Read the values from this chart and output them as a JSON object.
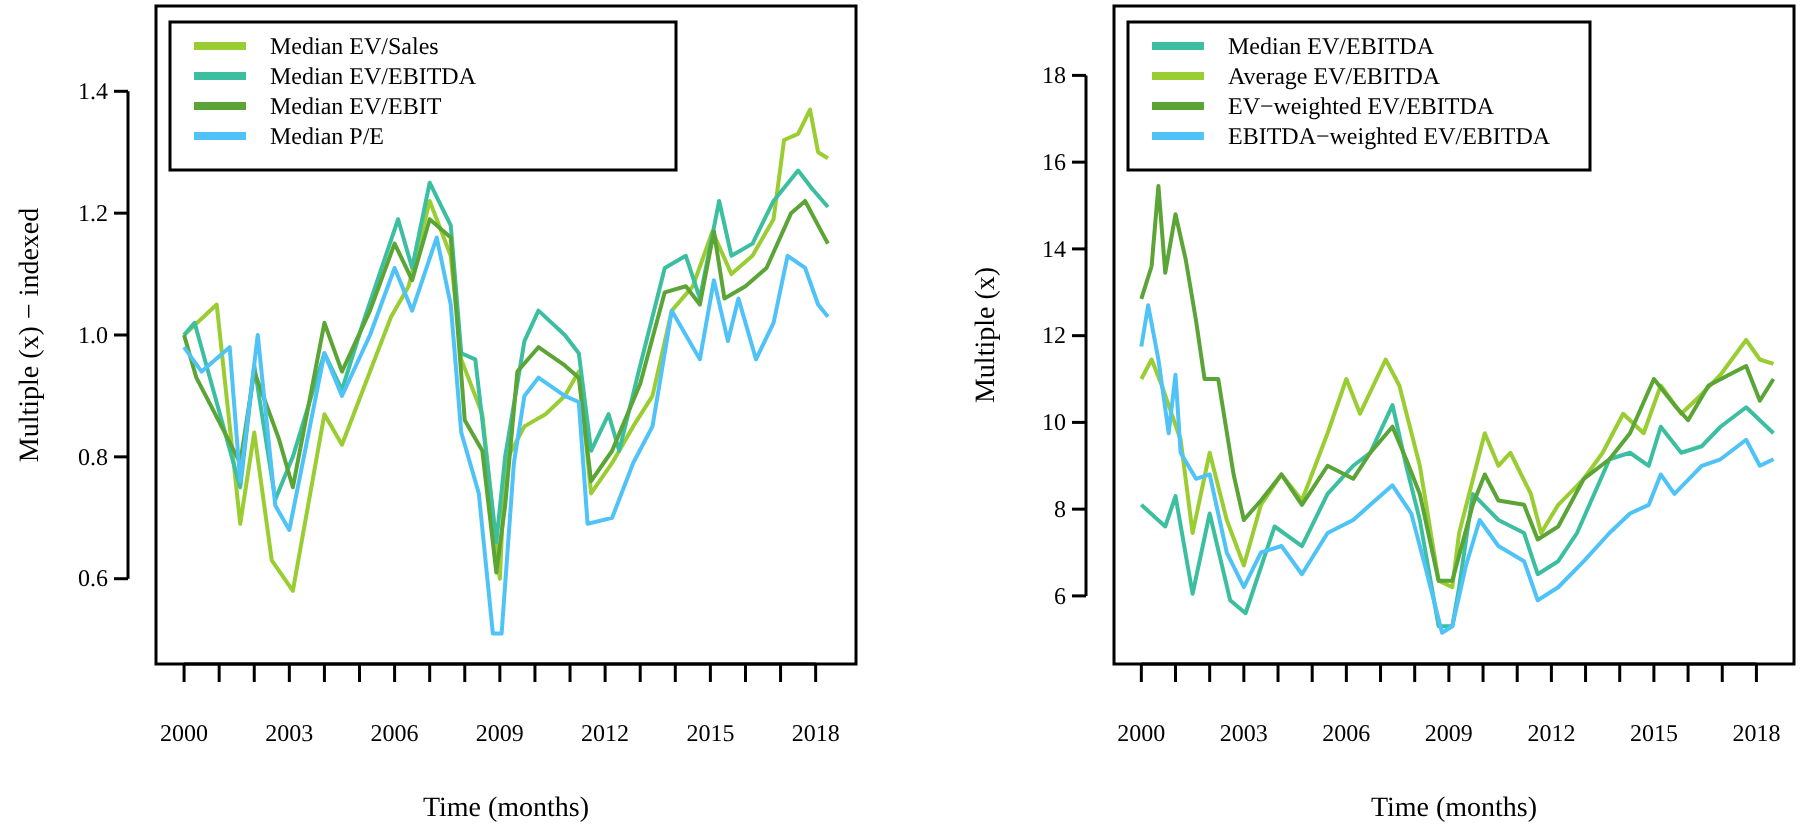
{
  "chart_data": [
    {
      "type": "line",
      "xlabel": "Time (months)",
      "ylabel": "Multiple (x) − indexed",
      "legend": "top left",
      "grid": false,
      "xlim": [
        1999.2,
        2019.15
      ],
      "ylim": [
        0.46,
        1.54
      ],
      "xticks": [
        2000,
        {
          "value": 2001,
          "label": null
        },
        {
          "value": 2002,
          "label": null
        },
        2003,
        {
          "value": 2004,
          "label": null
        },
        {
          "value": 2005,
          "label": null
        },
        2006,
        {
          "value": 2007,
          "label": null
        },
        {
          "value": 2008,
          "label": null
        },
        2009,
        {
          "value": 2010,
          "label": null
        },
        {
          "value": 2011,
          "label": null
        },
        2012,
        {
          "value": 2013,
          "label": null
        },
        {
          "value": 2014,
          "label": null
        },
        2015,
        {
          "value": 2016,
          "label": null
        },
        {
          "value": 2017,
          "label": null
        },
        2018
      ],
      "yticks": [
        0.6,
        0.8,
        {
          "value": 1,
          "label": "1.0"
        },
        1.2,
        1.4
      ],
      "series": [
        {
          "name": "Median EV/Sales",
          "color": "#9acd32",
          "x": [
            2000,
            2000.93,
            2001.6,
            2002.0,
            2002.5,
            2003.1,
            2004.0,
            2004.5,
            2005.3,
            2005.9,
            2006.4,
            2007.0,
            2007.6,
            2007.9,
            2008.5,
            2009.0,
            2009.15,
            2009.7,
            2010.3,
            2010.85,
            2011.25,
            2011.6,
            2012.2,
            2012.8,
            2013.35,
            2013.9,
            2014.5,
            2015.06,
            2015.6,
            2016.2,
            2016.8,
            2017.1,
            2017.5,
            2017.84,
            2018.07,
            2018.35
          ],
          "values": [
            1.0,
            1.05,
            0.69,
            0.84,
            0.63,
            0.58,
            0.87,
            0.82,
            0.94,
            1.03,
            1.08,
            1.22,
            1.13,
            0.96,
            0.87,
            0.6,
            0.79,
            0.85,
            0.87,
            0.9,
            0.94,
            0.74,
            0.79,
            0.85,
            0.9,
            1.04,
            1.08,
            1.17,
            1.1,
            1.13,
            1.19,
            1.32,
            1.33,
            1.37,
            1.3,
            1.29
          ]
        },
        {
          "name": "Median EV/EBITDA",
          "color": "#3cbfa0",
          "x": [
            2000,
            2000.3,
            2001.6,
            2002.0,
            2002.6,
            2003.1,
            2004.0,
            2004.5,
            2005.1,
            2006.1,
            2006.5,
            2007.0,
            2007.6,
            2007.9,
            2008.3,
            2008.9,
            2009.15,
            2009.7,
            2010.1,
            2010.85,
            2011.25,
            2011.6,
            2012.1,
            2012.4,
            2013.0,
            2013.7,
            2014.3,
            2014.7,
            2015.25,
            2015.6,
            2016.2,
            2016.8,
            2017.5,
            2017.9,
            2018.35
          ],
          "values": [
            1.0,
            1.02,
            0.75,
            0.95,
            0.73,
            0.8,
            0.97,
            0.91,
            1.02,
            1.19,
            1.11,
            1.25,
            1.18,
            0.97,
            0.96,
            0.66,
            0.8,
            0.99,
            1.04,
            1.0,
            0.97,
            0.81,
            0.87,
            0.81,
            0.95,
            1.11,
            1.13,
            1.06,
            1.22,
            1.13,
            1.15,
            1.22,
            1.27,
            1.24,
            1.21
          ]
        },
        {
          "name": "Median EV/EBIT",
          "color": "#5aa535",
          "x": [
            2000,
            2000.35,
            2000.8,
            2001.6,
            2002.0,
            2002.7,
            2003.1,
            2004.0,
            2004.5,
            2005.3,
            2006.0,
            2006.5,
            2007.0,
            2007.6,
            2008.0,
            2008.5,
            2008.9,
            2009.15,
            2009.5,
            2010.1,
            2010.85,
            2011.25,
            2011.6,
            2012.2,
            2013.0,
            2013.7,
            2014.3,
            2014.7,
            2015.1,
            2015.4,
            2016.0,
            2016.6,
            2017.3,
            2017.7,
            2018.07,
            2018.35
          ],
          "values": [
            1.0,
            0.93,
            0.88,
            0.79,
            0.94,
            0.83,
            0.75,
            1.02,
            0.94,
            1.04,
            1.15,
            1.09,
            1.19,
            1.16,
            0.86,
            0.81,
            0.61,
            0.72,
            0.94,
            0.98,
            0.95,
            0.93,
            0.76,
            0.81,
            0.92,
            1.07,
            1.08,
            1.05,
            1.17,
            1.06,
            1.08,
            1.11,
            1.2,
            1.22,
            1.18,
            1.15
          ]
        },
        {
          "name": "Median P/E",
          "color": "#4fc3f7",
          "x": [
            2000,
            2000.5,
            2001.3,
            2001.6,
            2002.1,
            2002.6,
            2003.0,
            2004.0,
            2004.5,
            2005.3,
            2006.0,
            2006.5,
            2007.2,
            2007.6,
            2007.9,
            2008.4,
            2008.8,
            2009.05,
            2009.4,
            2009.7,
            2010.1,
            2010.85,
            2011.25,
            2011.5,
            2012.2,
            2012.8,
            2013.35,
            2013.9,
            2014.5,
            2014.7,
            2015.1,
            2015.5,
            2015.8,
            2016.3,
            2016.8,
            2017.2,
            2017.7,
            2018.07,
            2018.35
          ],
          "values": [
            0.98,
            0.94,
            0.98,
            0.76,
            1.0,
            0.72,
            0.68,
            0.97,
            0.9,
            1.0,
            1.11,
            1.04,
            1.16,
            1.05,
            0.84,
            0.74,
            0.51,
            0.51,
            0.79,
            0.9,
            0.93,
            0.9,
            0.89,
            0.69,
            0.7,
            0.79,
            0.85,
            1.04,
            0.98,
            0.96,
            1.09,
            0.99,
            1.06,
            0.96,
            1.02,
            1.13,
            1.11,
            1.05,
            1.03
          ]
        }
      ]
    },
    {
      "type": "line",
      "xlabel": "Time (months)",
      "ylabel": "Multiple (x)",
      "legend": "top left",
      "grid": false,
      "xlim": [
        1999.2,
        2019.1
      ],
      "ylim": [
        4.43,
        19.6
      ],
      "xticks": [
        2000,
        {
          "value": 2001,
          "label": null
        },
        {
          "value": 2002,
          "label": null
        },
        2003,
        {
          "value": 2004,
          "label": null
        },
        {
          "value": 2005,
          "label": null
        },
        2006,
        {
          "value": 2007,
          "label": null
        },
        {
          "value": 2008,
          "label": null
        },
        2009,
        {
          "value": 2010,
          "label": null
        },
        {
          "value": 2011,
          "label": null
        },
        2012,
        {
          "value": 2013,
          "label": null
        },
        {
          "value": 2014,
          "label": null
        },
        2015,
        {
          "value": 2016,
          "label": null
        },
        {
          "value": 2017,
          "label": null
        },
        2018
      ],
      "yticks": [
        6,
        8,
        10,
        12,
        14,
        16,
        18
      ],
      "series": [
        {
          "name": "Median EV/EBITDA",
          "color": "#3cbfa0",
          "x": [
            2000,
            2000.7,
            2001.0,
            2001.5,
            2002.0,
            2002.6,
            2003.05,
            2003.9,
            2004.7,
            2005.45,
            2006.2,
            2006.7,
            2007.35,
            2007.75,
            2008.15,
            2008.7,
            2009.1,
            2009.3,
            2009.7,
            2010.45,
            2011.2,
            2011.6,
            2012.2,
            2012.75,
            2013.7,
            2014.3,
            2014.85,
            2015.2,
            2015.8,
            2016.4,
            2016.95,
            2017.7,
            2018.1,
            2018.5
          ],
          "values": [
            8.1,
            7.6,
            8.3,
            6.05,
            7.9,
            5.9,
            5.6,
            7.6,
            7.15,
            8.35,
            9.0,
            9.3,
            10.4,
            9.0,
            7.75,
            5.3,
            5.3,
            6.2,
            8.35,
            7.75,
            7.45,
            6.5,
            6.8,
            7.45,
            9.15,
            9.3,
            9.0,
            9.9,
            9.3,
            9.45,
            9.9,
            10.35,
            10.05,
            9.75
          ]
        },
        {
          "name": "Average EV/EBITDA",
          "color": "#9acd32",
          "x": [
            2000,
            2000.3,
            2000.6,
            2001.15,
            2001.5,
            2002.0,
            2002.5,
            2003.0,
            2003.5,
            2004.1,
            2004.7,
            2005.45,
            2006.0,
            2006.4,
            2007.15,
            2007.55,
            2008.15,
            2008.7,
            2009.1,
            2009.3,
            2010.05,
            2010.45,
            2010.8,
            2011.4,
            2011.7,
            2012.2,
            2012.95,
            2013.5,
            2014.1,
            2014.7,
            2015.2,
            2015.8,
            2016.4,
            2016.95,
            2017.7,
            2018.1,
            2018.5
          ],
          "values": [
            11.0,
            11.45,
            10.85,
            9.6,
            7.45,
            9.3,
            7.75,
            6.7,
            8.1,
            8.8,
            8.2,
            9.75,
            11.0,
            10.2,
            11.45,
            10.85,
            9.0,
            6.35,
            6.2,
            7.45,
            9.75,
            9.0,
            9.3,
            8.35,
            7.45,
            8.1,
            8.7,
            9.3,
            10.2,
            9.75,
            10.85,
            10.2,
            10.65,
            11.1,
            11.9,
            11.45,
            11.35
          ]
        },
        {
          "name": "EV−weighted EV/EBITDA",
          "color": "#5aa535",
          "x": [
            2000,
            2000.3,
            2000.5,
            2000.7,
            2001.0,
            2001.3,
            2001.6,
            2001.85,
            2002.25,
            2002.7,
            2003.0,
            2003.5,
            2004.1,
            2004.7,
            2005.45,
            2006.2,
            2006.7,
            2007.35,
            2007.75,
            2008.15,
            2008.7,
            2009.1,
            2009.7,
            2010.05,
            2010.45,
            2011.2,
            2011.6,
            2012.2,
            2012.95,
            2013.7,
            2014.3,
            2015.0,
            2015.6,
            2016.0,
            2016.6,
            2017.2,
            2017.7,
            2018.1,
            2018.5
          ],
          "values": [
            12.85,
            13.6,
            15.45,
            13.45,
            14.8,
            13.75,
            12.35,
            11.0,
            11.0,
            8.8,
            7.75,
            8.2,
            8.8,
            8.1,
            9.0,
            8.7,
            9.3,
            9.9,
            9.15,
            8.35,
            6.35,
            6.35,
            8.1,
            8.8,
            8.2,
            8.1,
            7.3,
            7.6,
            8.7,
            9.15,
            9.75,
            11.0,
            10.4,
            10.05,
            10.85,
            11.1,
            11.3,
            10.5,
            11.0
          ]
        },
        {
          "name": "EBITDA−weighted EV/EBITDA",
          "color": "#4fc3f7",
          "x": [
            2000,
            2000.2,
            2000.5,
            2000.8,
            2001.0,
            2001.15,
            2001.6,
            2002.0,
            2002.5,
            2003.0,
            2003.5,
            2004.1,
            2004.7,
            2005.45,
            2006.2,
            2006.7,
            2007.35,
            2007.9,
            2008.3,
            2008.8,
            2009.1,
            2009.5,
            2009.9,
            2010.45,
            2011.2,
            2011.6,
            2012.2,
            2012.95,
            2013.7,
            2014.3,
            2014.85,
            2015.2,
            2015.6,
            2016.4,
            2016.95,
            2017.7,
            2018.1,
            2018.5
          ],
          "values": [
            11.75,
            12.7,
            11.45,
            9.75,
            11.1,
            9.3,
            8.7,
            8.8,
            7.0,
            6.2,
            7.0,
            7.15,
            6.5,
            7.45,
            7.75,
            8.1,
            8.55,
            7.9,
            6.7,
            5.15,
            5.3,
            6.7,
            7.75,
            7.15,
            6.8,
            5.9,
            6.2,
            6.8,
            7.45,
            7.9,
            8.1,
            8.8,
            8.35,
            9.0,
            9.15,
            9.6,
            9.0,
            9.15
          ]
        }
      ]
    }
  ]
}
